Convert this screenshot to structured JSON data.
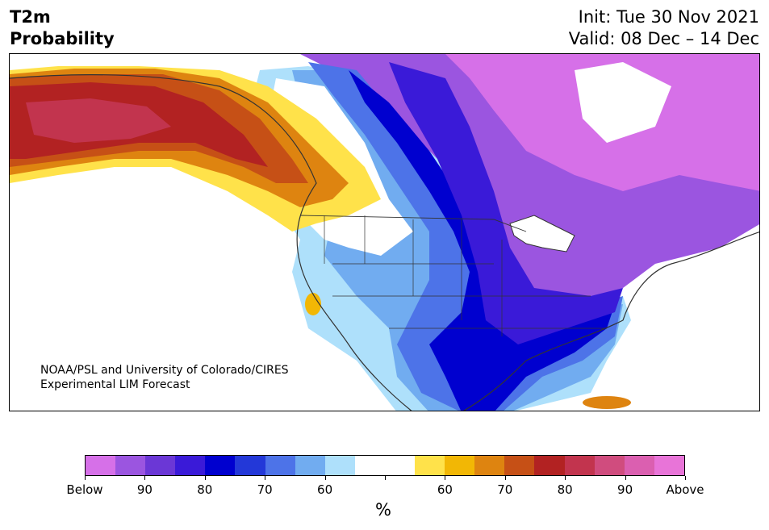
{
  "title": {
    "line1": "T2m",
    "line2": "Probability"
  },
  "dates": {
    "init": "Init: Tue 30 Nov 2021",
    "valid": "Valid: 08 Dec – 14 Dec"
  },
  "credit": {
    "line1": "NOAA/PSL and University of Colorado/CIRES",
    "line2": "Experimental LIM Forecast"
  },
  "colorbar": {
    "colors": [
      "#d670e8",
      "#9b55e0",
      "#6b37d6",
      "#3a1ad8",
      "#0000cf",
      "#2338d8",
      "#4d73e8",
      "#71acf0",
      "#aee0fb",
      "#ffffff",
      "#ffffff",
      "#ffe24a",
      "#f2b705",
      "#de8410",
      "#c65016",
      "#b22222",
      "#c2344e",
      "#d04c7e",
      "#db5fb0",
      "#e874d8"
    ],
    "tick_labels": [
      "Below",
      "90",
      "80",
      "70",
      "60",
      "",
      "60",
      "70",
      "80",
      "90",
      "Above"
    ],
    "units": "%"
  },
  "map": {
    "region": "North America",
    "colors": {
      "cold_strong": "#0000cf",
      "cold_mid": "#4d73e8",
      "cold_light": "#aee0fb",
      "cold_purple": "#9b55e0",
      "cold_pink": "#d670e8",
      "warm_light": "#ffe24a",
      "warm_orange": "#de8410",
      "warm_red": "#b22222"
    }
  }
}
